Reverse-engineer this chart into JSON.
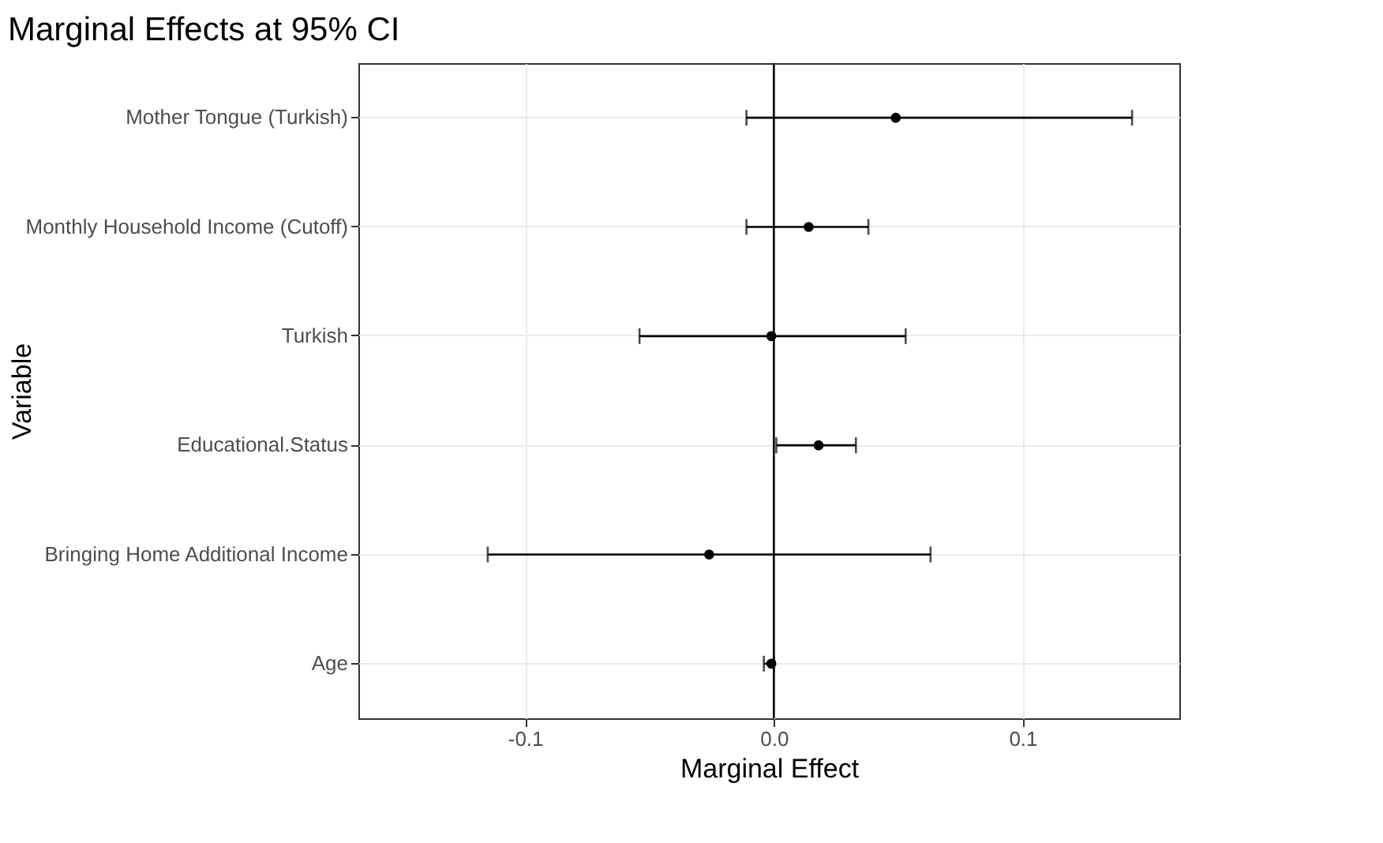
{
  "chart_data": {
    "type": "scatter",
    "title": "Marginal Effects at 95% CI",
    "xlabel": "Marginal Effect",
    "ylabel": "Variable",
    "orientation": "horizontal",
    "categories": [
      "Mother Tongue (Turkish)",
      "Monthly Household Income (Cutoff)",
      "Turkish",
      "Educational.Status",
      "Bringing Home Additional Income",
      "Age"
    ],
    "values": [
      0.049,
      0.014,
      -0.001,
      0.018,
      -0.026,
      -0.001
    ],
    "errors": [
      [
        -0.011,
        0.144
      ],
      [
        -0.011,
        0.038
      ],
      [
        -0.054,
        0.053
      ],
      [
        0.001,
        0.033
      ],
      [
        -0.115,
        0.063
      ],
      [
        -0.004,
        0.0
      ]
    ],
    "color": "#000000",
    "marker": "circle",
    "xlim": [
      -0.167,
      0.163
    ],
    "xticks": [
      {
        "value": -0.1,
        "label": "-0.1"
      },
      {
        "value": 0,
        "label": "0.0"
      },
      {
        "value": 0.1,
        "label": "0.1"
      }
    ],
    "ref_lines": [
      {
        "axis": "x",
        "value": 0,
        "label": null,
        "color": "#000000"
      }
    ],
    "grid": true
  }
}
